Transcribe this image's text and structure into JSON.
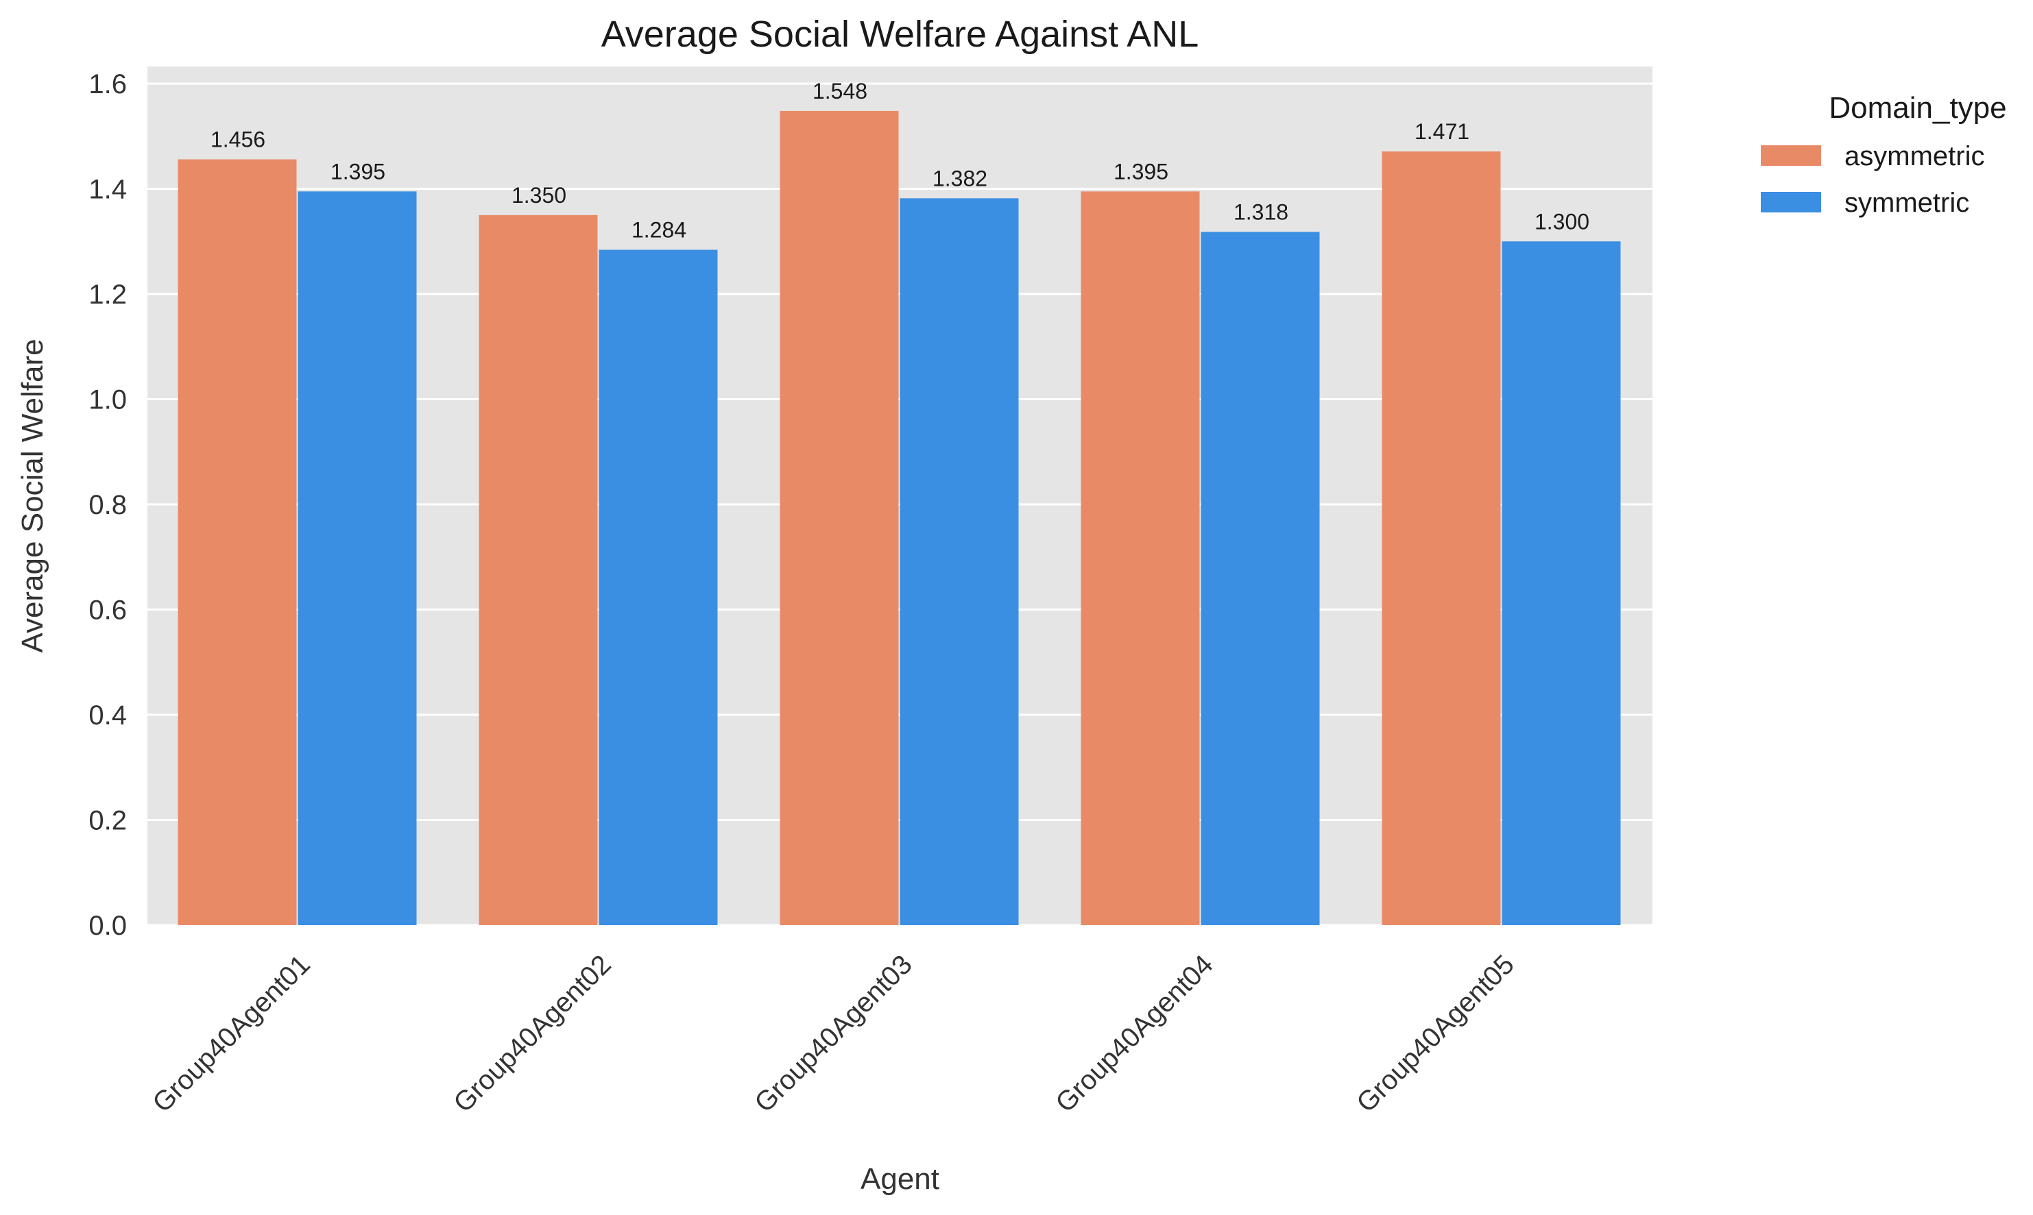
{
  "chart_data": {
    "type": "bar",
    "title": "Average Social Welfare Against ANL",
    "xlabel": "Agent",
    "ylabel": "Average Social Welfare",
    "categories": [
      "Group40Agent01",
      "Group40Agent02",
      "Group40Agent03",
      "Group40Agent04",
      "Group40Agent05"
    ],
    "series": [
      {
        "name": "asymmetric",
        "color": "#E98A67",
        "values": [
          1.456,
          1.35,
          1.548,
          1.395,
          1.471
        ],
        "labels": [
          "1.456",
          "1.350",
          "1.548",
          "1.395",
          "1.471"
        ]
      },
      {
        "name": "symmetric",
        "color": "#3B8FE2",
        "values": [
          1.395,
          1.284,
          1.382,
          1.318,
          1.3
        ],
        "labels": [
          "1.395",
          "1.284",
          "1.382",
          "1.318",
          "1.300"
        ]
      }
    ],
    "ylim": [
      0,
      1.6
    ],
    "yticks": [
      "0.0",
      "0.2",
      "0.4",
      "0.6",
      "0.8",
      "1.0",
      "1.2",
      "1.4",
      "1.6"
    ],
    "grid": true,
    "legend": {
      "title": "Domain_type",
      "placement": "outside-top-right"
    },
    "colors": {
      "plot_background": "#E5E5E5",
      "grid": "#FFFFFF"
    }
  }
}
